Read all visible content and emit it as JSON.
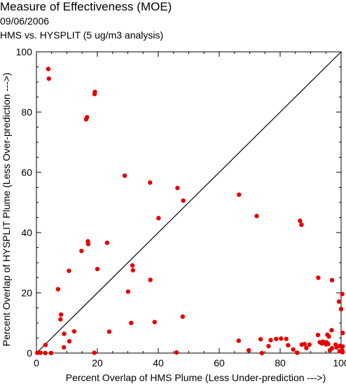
{
  "titles": {
    "title": "Measure of Effectiveness (MOE)",
    "date": "09/06/2006",
    "subtitle": "HMS vs. HYSPLIT  (5 ug/m3 analysis)"
  },
  "colors": {
    "points": "#e60000",
    "axes": "#000000",
    "diagonal": "#000000"
  },
  "chart_data": {
    "type": "scatter",
    "title": "Measure of Effectiveness (MOE)",
    "subtitle": "09/06/2006 — HMS vs. HYSPLIT  (5 ug/m3 analysis)",
    "xlabel": "Percent Overlap of HMS Plume (Less Under-prediction --->)",
    "ylabel": "Percent Overlap of HYSPLIT Plume (Less Over-prediction --->)",
    "xlim": [
      0,
      100
    ],
    "ylim": [
      0,
      100
    ],
    "xticks": [
      0,
      20,
      40,
      60,
      80,
      100
    ],
    "yticks": [
      0,
      20,
      40,
      60,
      80,
      100
    ],
    "grid": false,
    "reference_line": {
      "type": "diagonal",
      "from": [
        0,
        0
      ],
      "to": [
        100,
        100
      ]
    },
    "points": [
      [
        3.9,
        94.3
      ],
      [
        4.1,
        91.1
      ],
      [
        19.2,
        86.7
      ],
      [
        19.1,
        86.0
      ],
      [
        16.6,
        78.3
      ],
      [
        16.3,
        77.6
      ],
      [
        29.0,
        58.9
      ],
      [
        37.3,
        56.6
      ],
      [
        46.3,
        54.8
      ],
      [
        48.2,
        50.6
      ],
      [
        66.5,
        52.6
      ],
      [
        72.3,
        45.5
      ],
      [
        40.1,
        44.8
      ],
      [
        86.5,
        43.9
      ],
      [
        87.0,
        42.6
      ],
      [
        16.9,
        37.1
      ],
      [
        17.0,
        36.2
      ],
      [
        23.2,
        36.6
      ],
      [
        14.8,
        33.9
      ],
      [
        31.5,
        29.1
      ],
      [
        31.7,
        27.5
      ],
      [
        10.7,
        27.3
      ],
      [
        20.0,
        27.9
      ],
      [
        92.5,
        25.0
      ],
      [
        97.0,
        24.2
      ],
      [
        37.4,
        24.3
      ],
      [
        7.1,
        21.2
      ],
      [
        30.1,
        20.4
      ],
      [
        100.4,
        19.6
      ],
      [
        99.3,
        17.1
      ],
      [
        100.0,
        14.6
      ],
      [
        8.1,
        12.8
      ],
      [
        7.9,
        11.2
      ],
      [
        48.0,
        12.1
      ],
      [
        38.8,
        10.3
      ],
      [
        31.1,
        10.0
      ],
      [
        10.8,
        3.9
      ],
      [
        12.4,
        7.2
      ],
      [
        23.9,
        7.1
      ],
      [
        9.1,
        6.4
      ],
      [
        96.9,
        7.6
      ],
      [
        95.5,
        6.1
      ],
      [
        100.5,
        6.7
      ],
      [
        96.0,
        5.5
      ],
      [
        92.4,
        6.0
      ],
      [
        66.4,
        4.1
      ],
      [
        73.6,
        4.6
      ],
      [
        76.9,
        4.3
      ],
      [
        78.7,
        4.7
      ],
      [
        80.3,
        4.8
      ],
      [
        82.0,
        4.7
      ],
      [
        88.0,
        3.0
      ],
      [
        87.1,
        2.8
      ],
      [
        89.6,
        2.8
      ],
      [
        82.6,
        2.6
      ],
      [
        76.2,
        2.3
      ],
      [
        93.0,
        3.6
      ],
      [
        94.0,
        3.8
      ],
      [
        95.2,
        3.6
      ],
      [
        93.7,
        3.2
      ],
      [
        95.0,
        2.9
      ],
      [
        95.8,
        3.0
      ],
      [
        98.2,
        2.8
      ],
      [
        99.6,
        2.4
      ],
      [
        100.2,
        2.2
      ],
      [
        100.5,
        2.2
      ],
      [
        98.5,
        1.9
      ],
      [
        97.0,
        1.6
      ],
      [
        96.3,
        0.9
      ],
      [
        99.5,
        0.6
      ],
      [
        100.4,
        0.8
      ],
      [
        100.5,
        0.3
      ],
      [
        84.3,
        1.2
      ],
      [
        85.6,
        0.1
      ],
      [
        88.6,
        1.7
      ],
      [
        69.7,
        0.9
      ],
      [
        74.0,
        0.0
      ],
      [
        46.0,
        0.2
      ],
      [
        3.0,
        2.7
      ],
      [
        9.0,
        1.9
      ],
      [
        1.3,
        0.1
      ],
      [
        2.9,
        0.0
      ],
      [
        4.8,
        0.0
      ],
      [
        19.0,
        0.1
      ],
      [
        0.3,
        0.1
      ]
    ]
  }
}
